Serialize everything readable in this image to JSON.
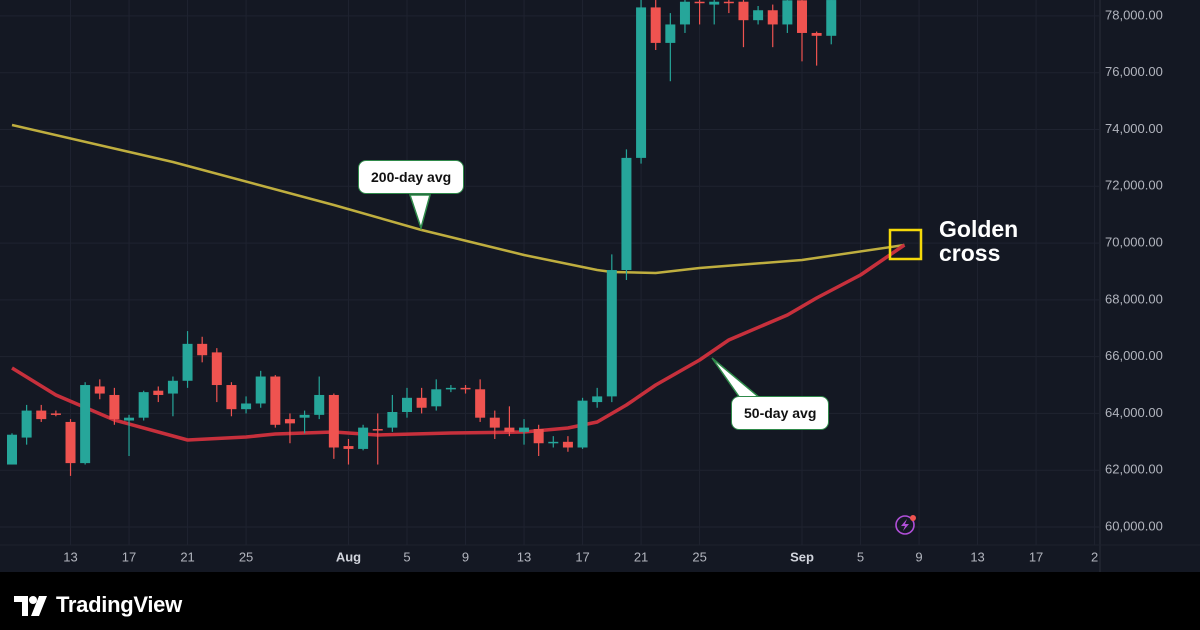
{
  "chart_data": {
    "type": "candlestick",
    "x": [
      9,
      10,
      11,
      12,
      13,
      14,
      15,
      16,
      17,
      18,
      19,
      20,
      21,
      22,
      23,
      24,
      25,
      26,
      27,
      28,
      29,
      30,
      31,
      32,
      33,
      34,
      35,
      36,
      37,
      38,
      39,
      40,
      41,
      42,
      43,
      44,
      45,
      46,
      47,
      48,
      49,
      50,
      51,
      52,
      53,
      54,
      55,
      56,
      57,
      58,
      59,
      60,
      61,
      62,
      63,
      64,
      65
    ],
    "open": [
      62200,
      63150,
      64100,
      64000,
      63700,
      62250,
      64950,
      64650,
      63750,
      63850,
      64800,
      64700,
      65150,
      66450,
      66150,
      65000,
      64150,
      64350,
      65300,
      63800,
      63850,
      63950,
      64650,
      62850,
      62750,
      63450,
      63500,
      64050,
      64550,
      64250,
      64850,
      64900,
      64850,
      63850,
      63500,
      63350,
      63450,
      62950,
      63000,
      62800,
      64400,
      64600,
      69050,
      73000,
      78300,
      77050,
      77700,
      78500,
      78400,
      78500,
      78500,
      77850,
      78200,
      77700,
      78550,
      77400,
      77300
    ],
    "high": [
      63300,
      64300,
      64300,
      64100,
      63800,
      65100,
      65200,
      64900,
      63950,
      64800,
      64950,
      65300,
      66900,
      66700,
      66300,
      65100,
      64600,
      65500,
      65350,
      64000,
      64100,
      65300,
      64700,
      63100,
      63600,
      64000,
      64650,
      64900,
      64900,
      65200,
      65000,
      65000,
      65200,
      64100,
      64250,
      63800,
      63600,
      63200,
      63200,
      64550,
      64900,
      69600,
      73300,
      78560,
      78560,
      78100,
      78560,
      78560,
      78560,
      78560,
      78560,
      78350,
      78400,
      78560,
      78560,
      77450,
      78560
    ],
    "low": [
      62200,
      62900,
      63700,
      63900,
      61800,
      62200,
      64500,
      63600,
      62500,
      63750,
      64400,
      63900,
      64900,
      65800,
      64400,
      63900,
      64000,
      64200,
      63500,
      62950,
      63300,
      63800,
      62400,
      62200,
      62700,
      62200,
      63350,
      63850,
      64000,
      64100,
      64750,
      64700,
      63700,
      63100,
      63200,
      62900,
      62500,
      62800,
      62650,
      62750,
      64200,
      64400,
      68700,
      72800,
      76800,
      75700,
      77400,
      77700,
      77700,
      78100,
      76900,
      77700,
      76900,
      77400,
      76400,
      76250,
      77000
    ],
    "close": [
      63250,
      64100,
      63800,
      63950,
      62250,
      65000,
      64700,
      63800,
      63850,
      64750,
      64650,
      65150,
      66450,
      66050,
      65000,
      64150,
      64350,
      65300,
      63600,
      63650,
      63950,
      64650,
      62800,
      62750,
      63500,
      63400,
      64050,
      64550,
      64200,
      64850,
      64900,
      64850,
      63850,
      63500,
      63350,
      63500,
      62950,
      63000,
      62800,
      64450,
      64600,
      69050,
      73000,
      78300,
      77050,
      77700,
      78500,
      78450,
      78500,
      78450,
      77850,
      78200,
      77700,
      78550,
      77400,
      77300,
      78560
    ],
    "up_color": "#26a69a",
    "down_color": "#ef5350",
    "overlays": [
      {
        "name": "200-day avg",
        "color": "#bfae3f",
        "x": [
          9,
          20,
          31,
          37,
          44,
          49,
          50,
          53,
          56,
          63,
          70
        ],
        "values": [
          74158,
          72855,
          71341,
          70460,
          69580,
          69051,
          68981,
          68946,
          69122,
          69403,
          69932
        ]
      },
      {
        "name": "50-day avg",
        "color": "#c7303c",
        "x": [
          9,
          12,
          16,
          21,
          25,
          27,
          31,
          34,
          39,
          44,
          47,
          49,
          51,
          53,
          56,
          58,
          62,
          64,
          67,
          70
        ],
        "values": [
          65600,
          64649,
          63769,
          63064,
          63170,
          63275,
          63346,
          63240,
          63311,
          63346,
          63487,
          63698,
          64297,
          65001,
          65882,
          66586,
          67467,
          68065,
          68875,
          69932
        ]
      }
    ],
    "annotations": [
      {
        "text": "Golden cross"
      }
    ],
    "xlim": [
      8.18,
      83.37
    ],
    "xticks": [
      {
        "value": 13,
        "label": "13"
      },
      {
        "value": 17,
        "label": "17"
      },
      {
        "value": 21,
        "label": "21"
      },
      {
        "value": 25,
        "label": "25"
      },
      {
        "value": 32,
        "label": "Aug"
      },
      {
        "value": 36,
        "label": "5"
      },
      {
        "value": 40,
        "label": "9"
      },
      {
        "value": 44,
        "label": "13"
      },
      {
        "value": 48,
        "label": "17"
      },
      {
        "value": 52,
        "label": "21"
      },
      {
        "value": 56,
        "label": "25"
      },
      {
        "value": 63,
        "label": "Sep"
      },
      {
        "value": 67,
        "label": "5"
      },
      {
        "value": 71,
        "label": "9"
      },
      {
        "value": 75,
        "label": "13"
      },
      {
        "value": 79,
        "label": "17"
      },
      {
        "value": 83,
        "label": "2"
      }
    ],
    "ylim": [
      59366,
      78561
    ],
    "yticks": [
      {
        "value": 60000,
        "label": "60,000.00"
      },
      {
        "value": 62000,
        "label": "62,000.00"
      },
      {
        "value": 64000,
        "label": "64,000.00"
      },
      {
        "value": 66000,
        "label": "66,000.00"
      },
      {
        "value": 68000,
        "label": "68,000.00"
      },
      {
        "value": 70000,
        "label": "70,000.00"
      },
      {
        "value": 72000,
        "label": "72,000.00"
      },
      {
        "value": 74000,
        "label": "74,000.00"
      },
      {
        "value": 76000,
        "label": "76,000.00"
      },
      {
        "value": 78000,
        "label": "78,000.00"
      }
    ],
    "grid": true
  },
  "footer": {
    "brand": "TradingView"
  }
}
